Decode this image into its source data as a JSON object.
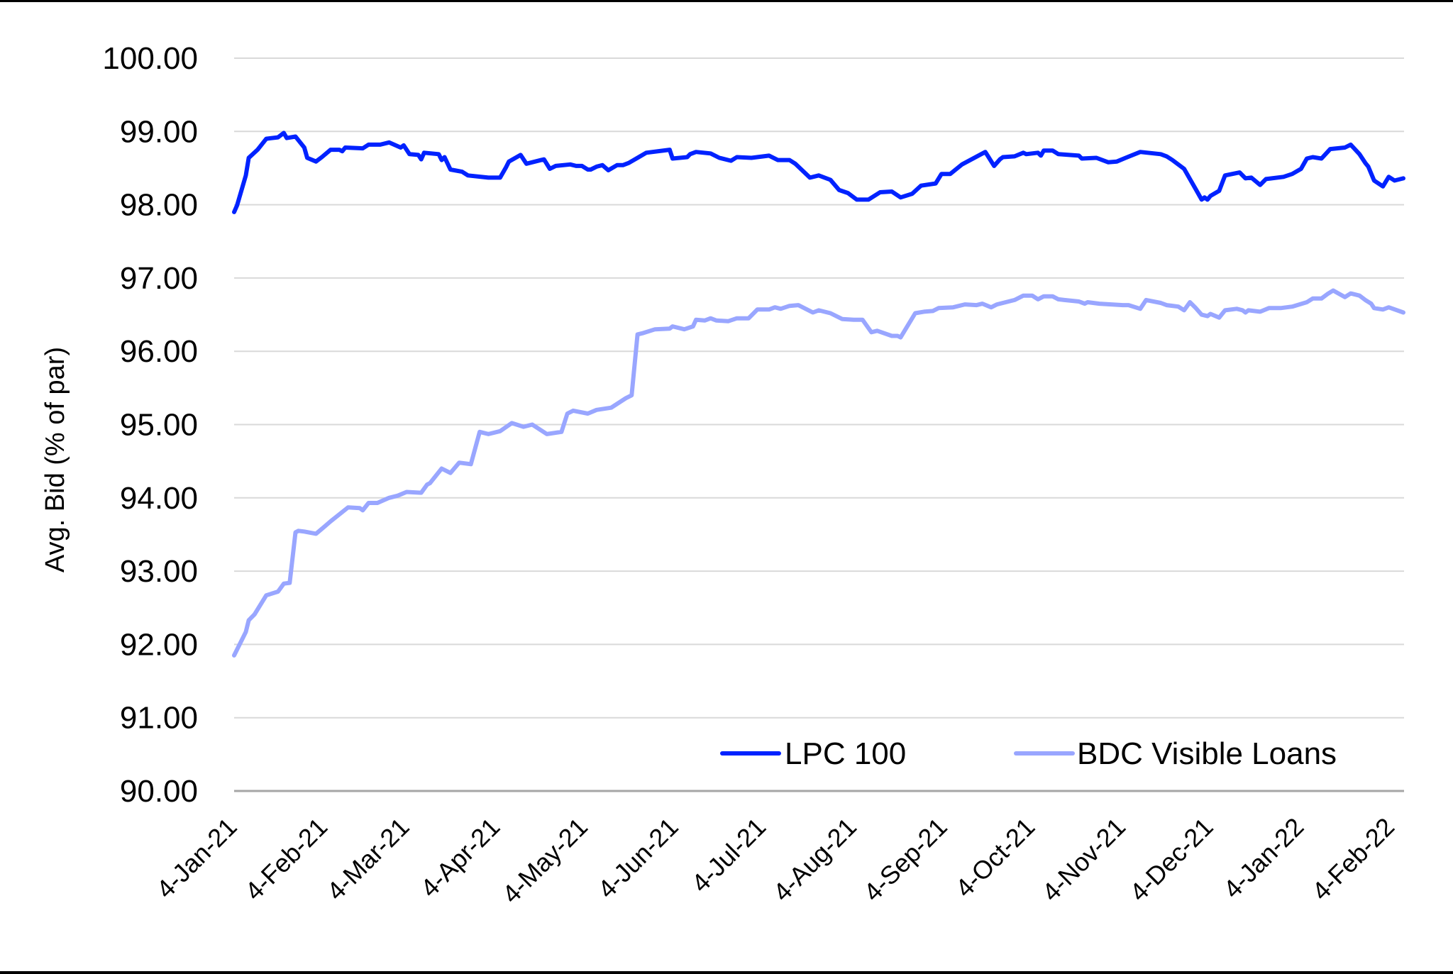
{
  "chart_data": {
    "type": "line",
    "title": "",
    "xlabel": "",
    "ylabel": "Avg. Bid (% of par)",
    "ylim": [
      90,
      100
    ],
    "yticks": [
      "90.00",
      "91.00",
      "92.00",
      "93.00",
      "94.00",
      "95.00",
      "96.00",
      "97.00",
      "98.00",
      "99.00",
      "100.00"
    ],
    "x_unit": "days since 4-Jan-21",
    "xlim": [
      0,
      400
    ],
    "xticks": [
      {
        "label": "4-Jan-21",
        "day": 0
      },
      {
        "label": "4-Feb-21",
        "day": 31
      },
      {
        "label": "4-Mar-21",
        "day": 59
      },
      {
        "label": "4-Apr-21",
        "day": 90
      },
      {
        "label": "4-May-21",
        "day": 120
      },
      {
        "label": "4-Jun-21",
        "day": 151
      },
      {
        "label": "4-Jul-21",
        "day": 181
      },
      {
        "label": "4-Aug-21",
        "day": 212
      },
      {
        "label": "4-Sep-21",
        "day": 243
      },
      {
        "label": "4-Oct-21",
        "day": 273
      },
      {
        "label": "4-Nov-21",
        "day": 304
      },
      {
        "label": "4-Dec-21",
        "day": 334
      },
      {
        "label": "4-Jan-22",
        "day": 365
      },
      {
        "label": "4-Feb-22",
        "day": 396
      }
    ],
    "grid": true,
    "legend_position": "lower-right inside plot",
    "series": [
      {
        "name": "LPC 100",
        "color": "#0022ff",
        "points": [
          [
            0,
            97.9
          ],
          [
            1,
            97.99
          ],
          [
            4,
            98.4
          ],
          [
            5,
            98.64
          ],
          [
            8,
            98.75
          ],
          [
            11,
            98.9
          ],
          [
            15,
            98.92
          ],
          [
            17,
            98.98
          ],
          [
            18,
            98.91
          ],
          [
            21,
            98.93
          ],
          [
            24,
            98.78
          ],
          [
            25,
            98.64
          ],
          [
            28,
            98.59
          ],
          [
            30,
            98.65
          ],
          [
            33,
            98.75
          ],
          [
            36,
            98.75
          ],
          [
            37,
            98.73
          ],
          [
            38,
            98.78
          ],
          [
            44,
            98.77
          ],
          [
            46,
            98.82
          ],
          [
            50,
            98.82
          ],
          [
            53,
            98.85
          ],
          [
            57,
            98.78
          ],
          [
            58,
            98.81
          ],
          [
            60,
            98.69
          ],
          [
            63,
            98.68
          ],
          [
            64,
            98.62
          ],
          [
            65,
            98.71
          ],
          [
            70,
            98.69
          ],
          [
            71,
            98.61
          ],
          [
            72,
            98.65
          ],
          [
            74,
            98.48
          ],
          [
            78,
            98.45
          ],
          [
            80,
            98.4
          ],
          [
            87,
            98.37
          ],
          [
            91,
            98.37
          ],
          [
            93,
            98.51
          ],
          [
            94,
            98.59
          ],
          [
            98,
            98.68
          ],
          [
            100,
            98.56
          ],
          [
            106,
            98.62
          ],
          [
            108,
            98.49
          ],
          [
            110,
            98.53
          ],
          [
            115,
            98.55
          ],
          [
            117,
            98.53
          ],
          [
            119,
            98.53
          ],
          [
            121,
            98.48
          ],
          [
            122,
            98.48
          ],
          [
            124,
            98.52
          ],
          [
            126,
            98.54
          ],
          [
            128,
            98.47
          ],
          [
            131,
            98.54
          ],
          [
            133,
            98.54
          ],
          [
            135,
            98.57
          ],
          [
            138,
            98.64
          ],
          [
            141,
            98.71
          ],
          [
            149,
            98.75
          ],
          [
            150,
            98.63
          ],
          [
            155,
            98.65
          ],
          [
            156,
            98.69
          ],
          [
            158,
            98.72
          ],
          [
            163,
            98.7
          ],
          [
            166,
            98.64
          ],
          [
            170,
            98.6
          ],
          [
            172,
            98.65
          ],
          [
            177,
            98.64
          ],
          [
            183,
            98.67
          ],
          [
            186,
            98.61
          ],
          [
            190,
            98.61
          ],
          [
            192,
            98.56
          ],
          [
            197,
            98.37
          ],
          [
            200,
            98.4
          ],
          [
            204,
            98.34
          ],
          [
            207,
            98.2
          ],
          [
            210,
            98.16
          ],
          [
            213,
            98.07
          ],
          [
            217,
            98.07
          ],
          [
            221,
            98.17
          ],
          [
            225,
            98.18
          ],
          [
            228,
            98.1
          ],
          [
            232,
            98.15
          ],
          [
            235,
            98.26
          ],
          [
            240,
            98.29
          ],
          [
            242,
            98.42
          ],
          [
            245,
            98.42
          ],
          [
            249,
            98.55
          ],
          [
            257,
            98.72
          ],
          [
            260,
            98.53
          ],
          [
            262,
            98.62
          ],
          [
            263,
            98.65
          ],
          [
            267,
            98.66
          ],
          [
            270,
            98.71
          ],
          [
            271,
            98.69
          ],
          [
            275,
            98.71
          ],
          [
            276,
            98.67
          ],
          [
            277,
            98.74
          ],
          [
            280,
            98.74
          ],
          [
            282,
            98.69
          ],
          [
            289,
            98.67
          ],
          [
            290,
            98.63
          ],
          [
            295,
            98.64
          ],
          [
            299,
            98.58
          ],
          [
            302,
            98.59
          ],
          [
            305,
            98.64
          ],
          [
            310,
            98.72
          ],
          [
            317,
            98.69
          ],
          [
            319,
            98.66
          ],
          [
            321,
            98.61
          ],
          [
            325,
            98.49
          ],
          [
            329,
            98.21
          ],
          [
            331,
            98.07
          ],
          [
            332,
            98.1
          ],
          [
            333,
            98.07
          ],
          [
            334,
            98.12
          ],
          [
            337,
            98.19
          ],
          [
            339,
            98.4
          ],
          [
            344,
            98.44
          ],
          [
            346,
            98.36
          ],
          [
            348,
            98.37
          ],
          [
            351,
            98.27
          ],
          [
            353,
            98.35
          ],
          [
            359,
            98.38
          ],
          [
            362,
            98.42
          ],
          [
            365,
            98.49
          ],
          [
            367,
            98.63
          ],
          [
            369,
            98.65
          ],
          [
            372,
            98.63
          ],
          [
            375,
            98.76
          ],
          [
            380,
            98.78
          ],
          [
            382,
            98.82
          ],
          [
            385,
            98.69
          ],
          [
            387,
            98.57
          ],
          [
            388,
            98.52
          ],
          [
            390,
            98.33
          ],
          [
            393,
            98.25
          ],
          [
            395,
            98.38
          ],
          [
            397,
            98.33
          ],
          [
            400,
            98.36
          ]
        ]
      },
      {
        "name": "BDC Visible Loans",
        "color": "#99a6ff",
        "points": [
          [
            0,
            91.85
          ],
          [
            4,
            92.17
          ],
          [
            5,
            92.33
          ],
          [
            7,
            92.41
          ],
          [
            11,
            92.67
          ],
          [
            15,
            92.72
          ],
          [
            17,
            92.83
          ],
          [
            19,
            92.84
          ],
          [
            21,
            93.53
          ],
          [
            22,
            93.55
          ],
          [
            24,
            93.54
          ],
          [
            28,
            93.51
          ],
          [
            31,
            93.61
          ],
          [
            33,
            93.68
          ],
          [
            39,
            93.87
          ],
          [
            43,
            93.86
          ],
          [
            44,
            93.83
          ],
          [
            46,
            93.93
          ],
          [
            49,
            93.93
          ],
          [
            53,
            94.0
          ],
          [
            56,
            94.03
          ],
          [
            59,
            94.08
          ],
          [
            64,
            94.07
          ],
          [
            66,
            94.18
          ],
          [
            67,
            94.2
          ],
          [
            71,
            94.4
          ],
          [
            74,
            94.34
          ],
          [
            77,
            94.48
          ],
          [
            81,
            94.46
          ],
          [
            84,
            94.9
          ],
          [
            87,
            94.87
          ],
          [
            91,
            94.91
          ],
          [
            95,
            95.02
          ],
          [
            99,
            94.97
          ],
          [
            102,
            95.0
          ],
          [
            107,
            94.87
          ],
          [
            112,
            94.9
          ],
          [
            114,
            95.15
          ],
          [
            116,
            95.19
          ],
          [
            121,
            95.15
          ],
          [
            124,
            95.2
          ],
          [
            129,
            95.23
          ],
          [
            134,
            95.36
          ],
          [
            136,
            95.4
          ],
          [
            138,
            96.23
          ],
          [
            140,
            96.25
          ],
          [
            144,
            96.3
          ],
          [
            149,
            96.31
          ],
          [
            150,
            96.34
          ],
          [
            154,
            96.3
          ],
          [
            157,
            96.34
          ],
          [
            158,
            96.43
          ],
          [
            161,
            96.42
          ],
          [
            163,
            96.45
          ],
          [
            165,
            96.42
          ],
          [
            169,
            96.41
          ],
          [
            172,
            96.45
          ],
          [
            176,
            96.45
          ],
          [
            179,
            96.57
          ],
          [
            183,
            96.57
          ],
          [
            185,
            96.6
          ],
          [
            187,
            96.58
          ],
          [
            190,
            96.62
          ],
          [
            193,
            96.63
          ],
          [
            198,
            96.53
          ],
          [
            200,
            96.56
          ],
          [
            204,
            96.52
          ],
          [
            208,
            96.44
          ],
          [
            212,
            96.43
          ],
          [
            215,
            96.43
          ],
          [
            218,
            96.26
          ],
          [
            220,
            96.28
          ],
          [
            225,
            96.21
          ],
          [
            227,
            96.21
          ],
          [
            228,
            96.19
          ],
          [
            233,
            96.52
          ],
          [
            236,
            96.54
          ],
          [
            239,
            96.55
          ],
          [
            241,
            96.59
          ],
          [
            246,
            96.6
          ],
          [
            250,
            96.64
          ],
          [
            254,
            96.63
          ],
          [
            256,
            96.65
          ],
          [
            259,
            96.6
          ],
          [
            261,
            96.64
          ],
          [
            267,
            96.7
          ],
          [
            270,
            96.76
          ],
          [
            273,
            96.76
          ],
          [
            275,
            96.71
          ],
          [
            277,
            96.75
          ],
          [
            280,
            96.75
          ],
          [
            282,
            96.71
          ],
          [
            284,
            96.7
          ],
          [
            289,
            96.68
          ],
          [
            291,
            96.65
          ],
          [
            292,
            96.67
          ],
          [
            296,
            96.65
          ],
          [
            304,
            96.63
          ],
          [
            306,
            96.63
          ],
          [
            310,
            96.58
          ],
          [
            312,
            96.7
          ],
          [
            317,
            96.66
          ],
          [
            319,
            96.63
          ],
          [
            323,
            96.61
          ],
          [
            325,
            96.56
          ],
          [
            327,
            96.67
          ],
          [
            329,
            96.59
          ],
          [
            331,
            96.5
          ],
          [
            333,
            96.48
          ],
          [
            334,
            96.51
          ],
          [
            337,
            96.46
          ],
          [
            339,
            96.56
          ],
          [
            343,
            96.58
          ],
          [
            345,
            96.56
          ],
          [
            346,
            96.53
          ],
          [
            347,
            96.56
          ],
          [
            351,
            96.54
          ],
          [
            354,
            96.59
          ],
          [
            358,
            96.59
          ],
          [
            362,
            96.61
          ],
          [
            367,
            96.67
          ],
          [
            369,
            96.72
          ],
          [
            372,
            96.72
          ],
          [
            374,
            96.78
          ],
          [
            376,
            96.83
          ],
          [
            380,
            96.74
          ],
          [
            382,
            96.79
          ],
          [
            385,
            96.76
          ],
          [
            387,
            96.7
          ],
          [
            389,
            96.65
          ],
          [
            390,
            96.59
          ],
          [
            393,
            96.57
          ],
          [
            395,
            96.6
          ],
          [
            400,
            96.53
          ]
        ]
      }
    ]
  },
  "legend": {
    "items": [
      {
        "label": "LPC 100",
        "color": "#0022ff"
      },
      {
        "label": "BDC Visible Loans",
        "color": "#99a6ff"
      }
    ]
  },
  "colors": {
    "grid": "#d9d9d9",
    "axis": "#a6a6a6",
    "text": "#000000"
  }
}
